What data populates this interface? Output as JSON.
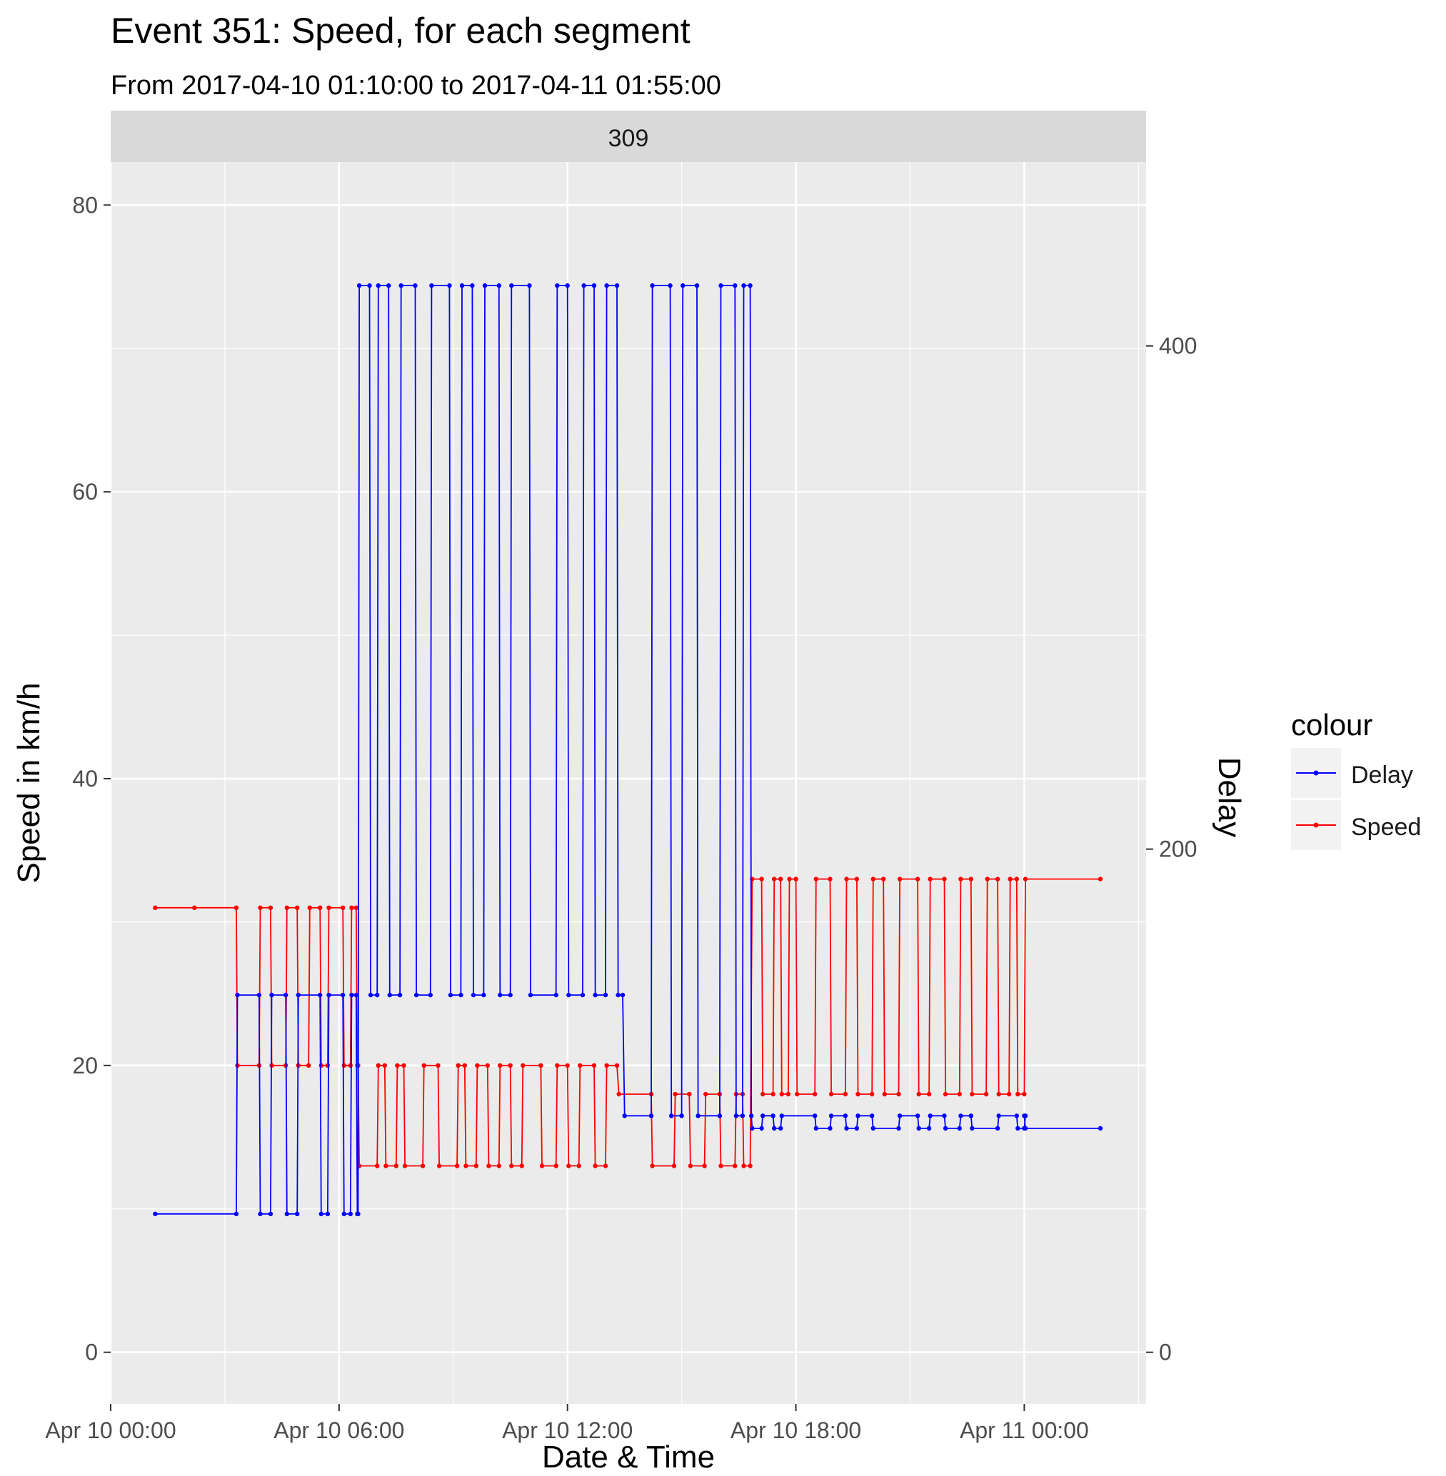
{
  "chart_data": {
    "type": "line",
    "title": "Event 351: Speed, for each segment",
    "subtitle": "From 2017-04-10 01:10:00 to 2017-04-11 01:55:00",
    "facet_label": "309",
    "xlabel": "Date & Time",
    "ylabel": "Speed in km/h",
    "y2label": "Delay",
    "x_ticks": [
      "Apr 10 00:00",
      "Apr 10 06:00",
      "Apr 10 12:00",
      "Apr 10 18:00",
      "Apr 11 00:00"
    ],
    "x_tick_hours": [
      0,
      6,
      12,
      18,
      24
    ],
    "xlim_hours": [
      0,
      27.2
    ],
    "y_ticks": [
      "0",
      "20",
      "40",
      "60",
      "80"
    ],
    "ylim": [
      -3.6,
      83
    ],
    "y2_ticks": [
      "0",
      "200",
      "400"
    ],
    "y2_scale": "Delay = Speed × 5.7",
    "legend": {
      "title": "colour",
      "position": "right",
      "entries": [
        {
          "label": "Delay",
          "color": "#0000ff"
        },
        {
          "label": "Speed",
          "color": "#ff0000"
        }
      ]
    },
    "series": [
      {
        "name": "Speed",
        "color": "#ff0000",
        "x_unit": "hours since Apr 10 00:00",
        "y_unit": "km/h (left axis)",
        "points": [
          [
            1.17,
            31
          ],
          [
            2.2,
            31
          ],
          [
            3.3,
            31
          ],
          [
            3.33,
            20
          ],
          [
            3.9,
            20
          ],
          [
            3.93,
            31
          ],
          [
            4.2,
            31
          ],
          [
            4.23,
            20
          ],
          [
            4.6,
            20
          ],
          [
            4.63,
            31
          ],
          [
            4.9,
            31
          ],
          [
            4.93,
            20
          ],
          [
            5.2,
            20
          ],
          [
            5.23,
            31
          ],
          [
            5.5,
            31
          ],
          [
            5.53,
            20
          ],
          [
            5.7,
            20
          ],
          [
            5.73,
            31
          ],
          [
            6.1,
            31
          ],
          [
            6.13,
            20
          ],
          [
            6.3,
            20
          ],
          [
            6.33,
            31
          ],
          [
            6.45,
            31
          ],
          [
            6.48,
            20
          ],
          [
            6.5,
            20
          ],
          [
            6.53,
            13
          ],
          [
            7.0,
            13
          ],
          [
            7.03,
            20
          ],
          [
            7.2,
            20
          ],
          [
            7.23,
            13
          ],
          [
            7.5,
            13
          ],
          [
            7.53,
            20
          ],
          [
            7.7,
            20
          ],
          [
            7.73,
            13
          ],
          [
            8.2,
            13
          ],
          [
            8.23,
            20
          ],
          [
            8.6,
            20
          ],
          [
            8.63,
            13
          ],
          [
            9.1,
            13
          ],
          [
            9.13,
            20
          ],
          [
            9.3,
            20
          ],
          [
            9.33,
            13
          ],
          [
            9.6,
            13
          ],
          [
            9.63,
            20
          ],
          [
            9.9,
            20
          ],
          [
            9.93,
            13
          ],
          [
            10.2,
            13
          ],
          [
            10.23,
            20
          ],
          [
            10.5,
            20
          ],
          [
            10.53,
            13
          ],
          [
            10.8,
            13
          ],
          [
            10.83,
            20
          ],
          [
            11.3,
            20
          ],
          [
            11.33,
            13
          ],
          [
            11.7,
            13
          ],
          [
            11.73,
            20
          ],
          [
            12.0,
            20
          ],
          [
            12.03,
            13
          ],
          [
            12.3,
            13
          ],
          [
            12.33,
            20
          ],
          [
            12.7,
            20
          ],
          [
            12.73,
            13
          ],
          [
            13.0,
            13
          ],
          [
            13.03,
            20
          ],
          [
            13.3,
            20
          ],
          [
            13.35,
            18
          ],
          [
            14.2,
            18
          ],
          [
            14.23,
            13
          ],
          [
            14.8,
            13
          ],
          [
            14.83,
            18
          ],
          [
            15.2,
            18
          ],
          [
            15.23,
            13
          ],
          [
            15.6,
            13
          ],
          [
            15.63,
            18
          ],
          [
            16.0,
            18
          ],
          [
            16.03,
            13
          ],
          [
            16.4,
            13
          ],
          [
            16.43,
            18
          ],
          [
            16.6,
            18
          ],
          [
            16.63,
            13
          ],
          [
            16.8,
            13
          ],
          [
            16.85,
            33
          ],
          [
            17.1,
            33
          ],
          [
            17.13,
            18
          ],
          [
            17.4,
            18
          ],
          [
            17.43,
            33
          ],
          [
            17.6,
            33
          ],
          [
            17.63,
            18
          ],
          [
            17.8,
            18
          ],
          [
            17.83,
            33
          ],
          [
            18.0,
            33
          ],
          [
            18.03,
            18
          ],
          [
            18.5,
            18
          ],
          [
            18.53,
            33
          ],
          [
            18.9,
            33
          ],
          [
            18.93,
            18
          ],
          [
            19.3,
            18
          ],
          [
            19.33,
            33
          ],
          [
            19.6,
            33
          ],
          [
            19.63,
            18
          ],
          [
            20.0,
            18
          ],
          [
            20.03,
            33
          ],
          [
            20.3,
            33
          ],
          [
            20.33,
            18
          ],
          [
            20.7,
            18
          ],
          [
            20.73,
            33
          ],
          [
            21.2,
            33
          ],
          [
            21.23,
            18
          ],
          [
            21.5,
            18
          ],
          [
            21.53,
            33
          ],
          [
            21.9,
            33
          ],
          [
            21.93,
            18
          ],
          [
            22.3,
            18
          ],
          [
            22.33,
            33
          ],
          [
            22.6,
            33
          ],
          [
            22.63,
            18
          ],
          [
            23.0,
            18
          ],
          [
            23.03,
            33
          ],
          [
            23.3,
            33
          ],
          [
            23.33,
            18
          ],
          [
            23.6,
            18
          ],
          [
            23.63,
            33
          ],
          [
            23.8,
            33
          ],
          [
            23.83,
            18
          ],
          [
            24.0,
            18
          ],
          [
            24.03,
            33
          ],
          [
            26.0,
            33
          ]
        ]
      },
      {
        "name": "Delay",
        "color": "#0000ff",
        "x_unit": "hours since Apr 10 00:00",
        "y_unit": "delay (right axis)",
        "points": [
          [
            1.17,
            55
          ],
          [
            3.3,
            55
          ],
          [
            3.33,
            142
          ],
          [
            3.9,
            142
          ],
          [
            3.93,
            55
          ],
          [
            4.2,
            55
          ],
          [
            4.23,
            142
          ],
          [
            4.6,
            142
          ],
          [
            4.63,
            55
          ],
          [
            4.9,
            55
          ],
          [
            4.93,
            142
          ],
          [
            5.5,
            142
          ],
          [
            5.53,
            55
          ],
          [
            5.7,
            55
          ],
          [
            5.73,
            142
          ],
          [
            6.1,
            142
          ],
          [
            6.13,
            55
          ],
          [
            6.3,
            55
          ],
          [
            6.33,
            142
          ],
          [
            6.45,
            142
          ],
          [
            6.48,
            55
          ],
          [
            6.5,
            55
          ],
          [
            6.53,
            424
          ],
          [
            6.8,
            424
          ],
          [
            6.83,
            142
          ],
          [
            7.0,
            142
          ],
          [
            7.03,
            424
          ],
          [
            7.3,
            424
          ],
          [
            7.33,
            142
          ],
          [
            7.6,
            142
          ],
          [
            7.63,
            424
          ],
          [
            8.0,
            424
          ],
          [
            8.03,
            142
          ],
          [
            8.4,
            142
          ],
          [
            8.43,
            424
          ],
          [
            8.9,
            424
          ],
          [
            8.93,
            142
          ],
          [
            9.2,
            142
          ],
          [
            9.23,
            424
          ],
          [
            9.5,
            424
          ],
          [
            9.53,
            142
          ],
          [
            9.8,
            142
          ],
          [
            9.83,
            424
          ],
          [
            10.2,
            424
          ],
          [
            10.23,
            142
          ],
          [
            10.5,
            142
          ],
          [
            10.53,
            424
          ],
          [
            11.0,
            424
          ],
          [
            11.03,
            142
          ],
          [
            11.7,
            142
          ],
          [
            11.73,
            424
          ],
          [
            12.0,
            424
          ],
          [
            12.03,
            142
          ],
          [
            12.4,
            142
          ],
          [
            12.43,
            424
          ],
          [
            12.7,
            424
          ],
          [
            12.73,
            142
          ],
          [
            13.0,
            142
          ],
          [
            13.03,
            424
          ],
          [
            13.3,
            424
          ],
          [
            13.33,
            142
          ],
          [
            13.45,
            142
          ],
          [
            13.5,
            94
          ],
          [
            14.2,
            94
          ],
          [
            14.23,
            424
          ],
          [
            14.7,
            424
          ],
          [
            14.73,
            94
          ],
          [
            15.0,
            94
          ],
          [
            15.03,
            424
          ],
          [
            15.4,
            424
          ],
          [
            15.43,
            94
          ],
          [
            16.0,
            94
          ],
          [
            16.03,
            424
          ],
          [
            16.4,
            424
          ],
          [
            16.43,
            94
          ],
          [
            16.6,
            94
          ],
          [
            16.63,
            424
          ],
          [
            16.8,
            424
          ],
          [
            16.83,
            94
          ],
          [
            16.85,
            89
          ],
          [
            17.1,
            89
          ],
          [
            17.13,
            94
          ],
          [
            17.4,
            94
          ],
          [
            17.43,
            89
          ],
          [
            17.6,
            89
          ],
          [
            17.63,
            94
          ],
          [
            18.5,
            94
          ],
          [
            18.53,
            89
          ],
          [
            18.9,
            89
          ],
          [
            18.93,
            94
          ],
          [
            19.3,
            94
          ],
          [
            19.33,
            89
          ],
          [
            19.6,
            89
          ],
          [
            19.63,
            94
          ],
          [
            20.0,
            94
          ],
          [
            20.03,
            89
          ],
          [
            20.7,
            89
          ],
          [
            20.73,
            94
          ],
          [
            21.2,
            94
          ],
          [
            21.23,
            89
          ],
          [
            21.5,
            89
          ],
          [
            21.53,
            94
          ],
          [
            21.9,
            94
          ],
          [
            21.93,
            89
          ],
          [
            22.3,
            89
          ],
          [
            22.33,
            94
          ],
          [
            22.6,
            94
          ],
          [
            22.63,
            89
          ],
          [
            23.3,
            89
          ],
          [
            23.33,
            94
          ],
          [
            23.8,
            94
          ],
          [
            23.83,
            89
          ],
          [
            24.0,
            89
          ],
          [
            24.03,
            94
          ],
          [
            24.0,
            94
          ],
          [
            24.03,
            89
          ],
          [
            26.0,
            89
          ]
        ]
      }
    ]
  }
}
